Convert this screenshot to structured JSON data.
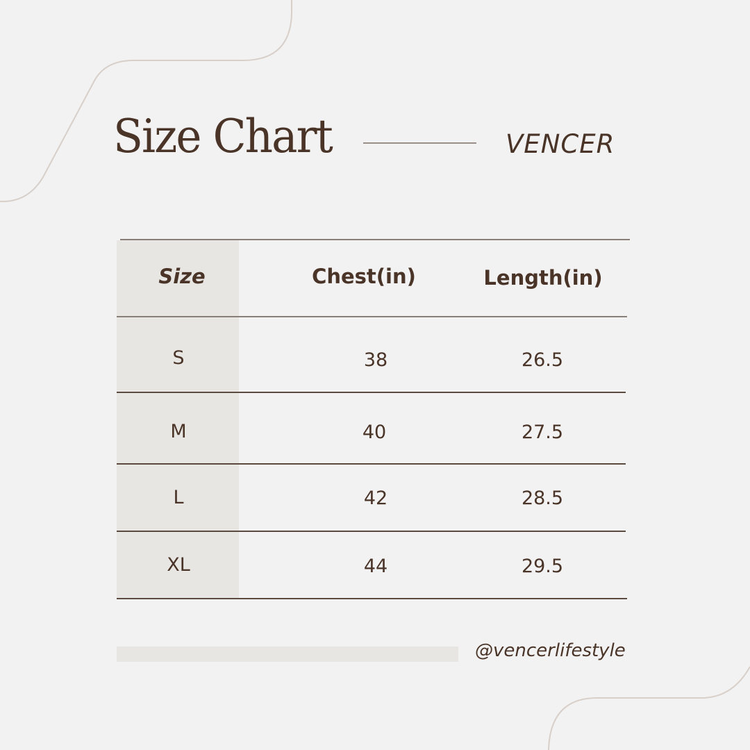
{
  "title": "Size Chart",
  "brand": "VENCER",
  "table": {
    "headers": [
      "Size",
      "Chest(in)",
      "Length(in)"
    ],
    "rows": [
      [
        "S",
        "38",
        "26.5"
      ],
      [
        "M",
        "40",
        "27.5"
      ],
      [
        "L",
        "42",
        "28.5"
      ],
      [
        "XL",
        "44",
        "29.5"
      ]
    ]
  },
  "handle": "@vencerlifestyle",
  "colors": {
    "text": "#4a3428",
    "background": "#f2f2f2",
    "accent_column": "#e8e6e2",
    "decor": "#d8cfc9"
  }
}
